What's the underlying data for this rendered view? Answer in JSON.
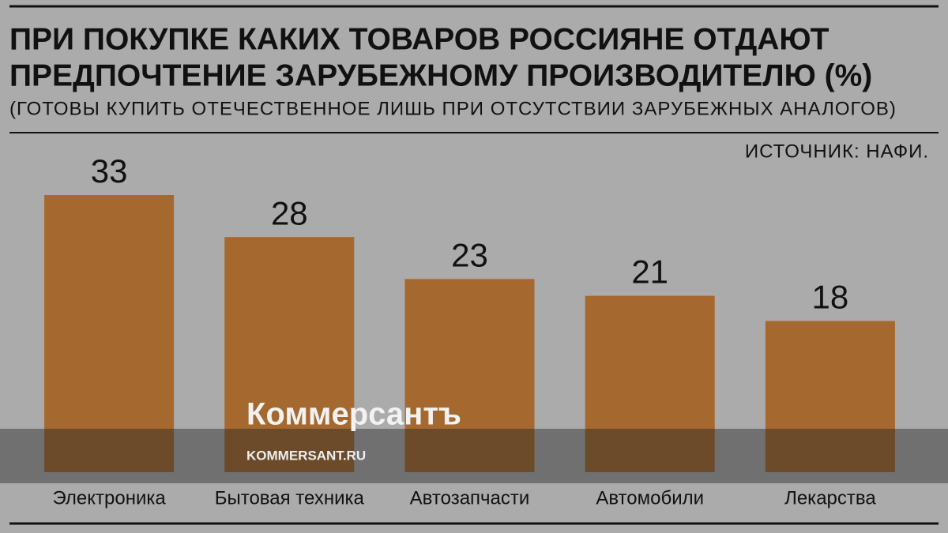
{
  "chart_data": {
    "type": "bar",
    "title": [
      "ПРИ ПОКУПКЕ КАКИХ ТОВАРОВ РОССИЯНЕ ОТДАЮТ",
      "ПРЕДПОЧТЕНИЕ ЗАРУБЕЖНОМУ ПРОИЗВОДИТЕЛЮ (%)"
    ],
    "subtitle": "(ГОТОВЫ КУПИТЬ ОТЕЧЕСТВЕННОЕ ЛИШЬ ПРИ ОТСУТСТВИИ ЗАРУБЕЖНЫХ АНАЛОГОВ)",
    "source": "ИСТОЧНИК: НАФИ.",
    "categories": [
      "Электроника",
      "Бытовая техника",
      "Автозапчасти",
      "Автомобили",
      "Лекарства"
    ],
    "values": [
      33,
      28,
      23,
      21,
      18
    ],
    "color": "#a5682e"
  },
  "watermark": {
    "brand": "Коммерсантъ",
    "url": "KOMMERSANT.RU"
  }
}
